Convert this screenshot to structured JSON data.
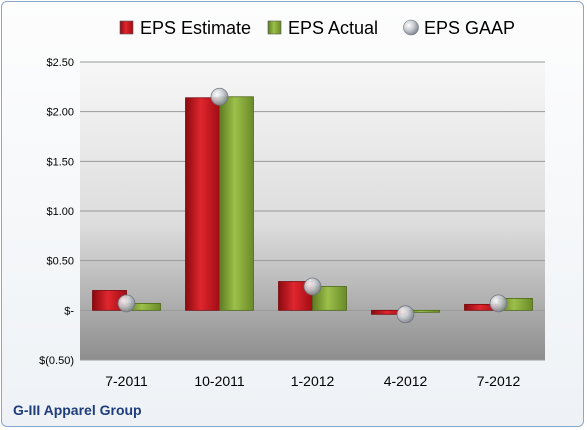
{
  "chart_data": {
    "type": "bar",
    "title": "",
    "xlabel": "",
    "ylabel": "",
    "categories": [
      "7-2011",
      "10-2011",
      "1-2012",
      "4-2012",
      "7-2012"
    ],
    "series": [
      {
        "name": "EPS Estimate",
        "kind": "bar",
        "color": "#c0141c",
        "values": [
          0.2,
          2.14,
          0.29,
          -0.04,
          0.06
        ]
      },
      {
        "name": "EPS Actual",
        "kind": "bar",
        "color": "#7a9a32",
        "values": [
          0.07,
          2.15,
          0.24,
          -0.02,
          0.12
        ]
      },
      {
        "name": "EPS GAAP",
        "kind": "point",
        "color": "#b8bcc2",
        "values": [
          0.07,
          2.15,
          0.24,
          -0.04,
          0.07
        ]
      }
    ],
    "ylim": [
      -0.5,
      2.5
    ],
    "yticks": [
      2.5,
      2.0,
      1.5,
      1.0,
      0.5,
      0,
      -0.5
    ],
    "ytick_labels": [
      "$2.50",
      "$2.00",
      "$1.50",
      "$1.00",
      "$0.50",
      "$-",
      "$(0.50)"
    ],
    "grid": true,
    "legend_position": "top"
  },
  "footer": {
    "company": "G-III Apparel Group"
  }
}
